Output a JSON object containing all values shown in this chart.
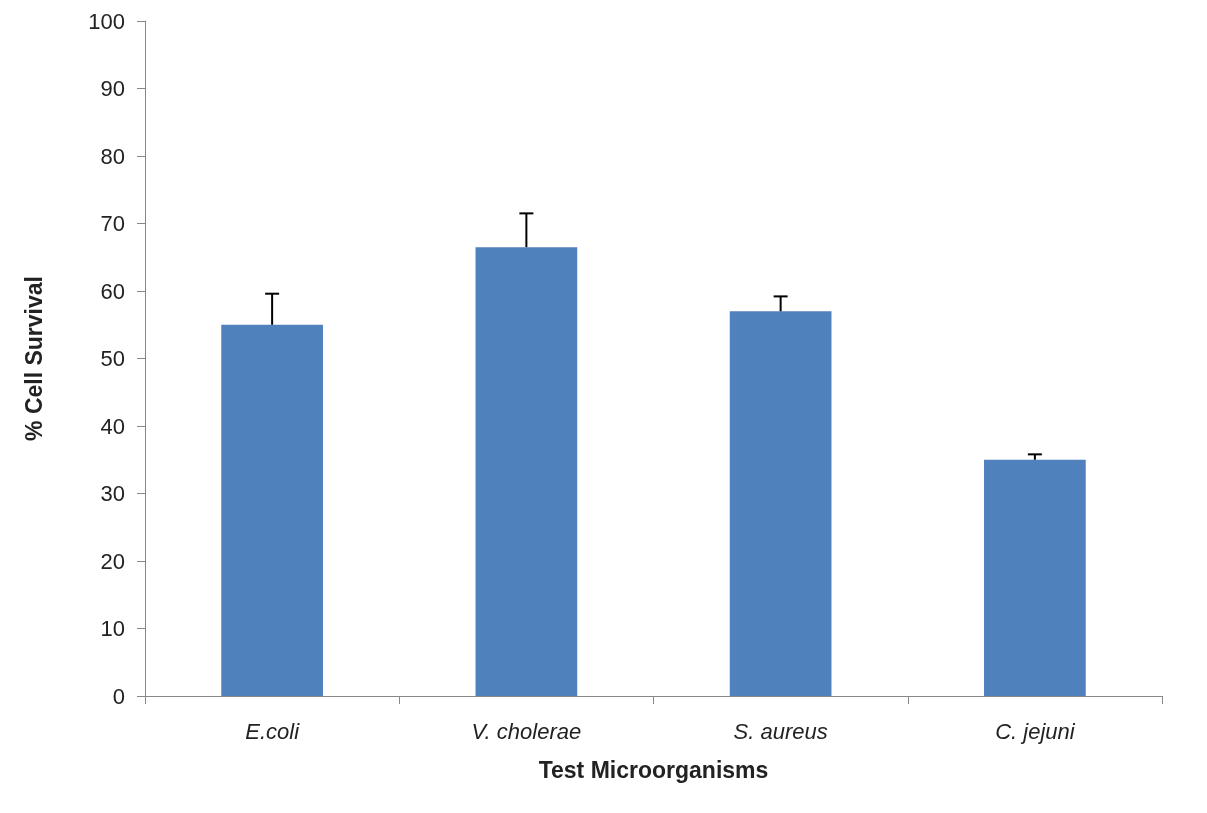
{
  "chart_data": {
    "type": "bar",
    "xlabel": "Test Microorganisms",
    "ylabel": "% Cell Survival",
    "categories": [
      "E.coli",
      "V. cholerae",
      "S. aureus",
      "C. jejuni"
    ],
    "values": [
      55,
      66.5,
      57,
      35
    ],
    "errors": [
      [
        55,
        59.6
      ],
      [
        66.5,
        71.5
      ],
      [
        57,
        59.2
      ],
      [
        35,
        35.8
      ]
    ],
    "color": "#4f81bd",
    "ylim": [
      0,
      100
    ],
    "yticks": [
      0,
      10,
      20,
      30,
      40,
      50,
      60,
      70,
      80,
      90,
      100
    ],
    "grid": false
  }
}
